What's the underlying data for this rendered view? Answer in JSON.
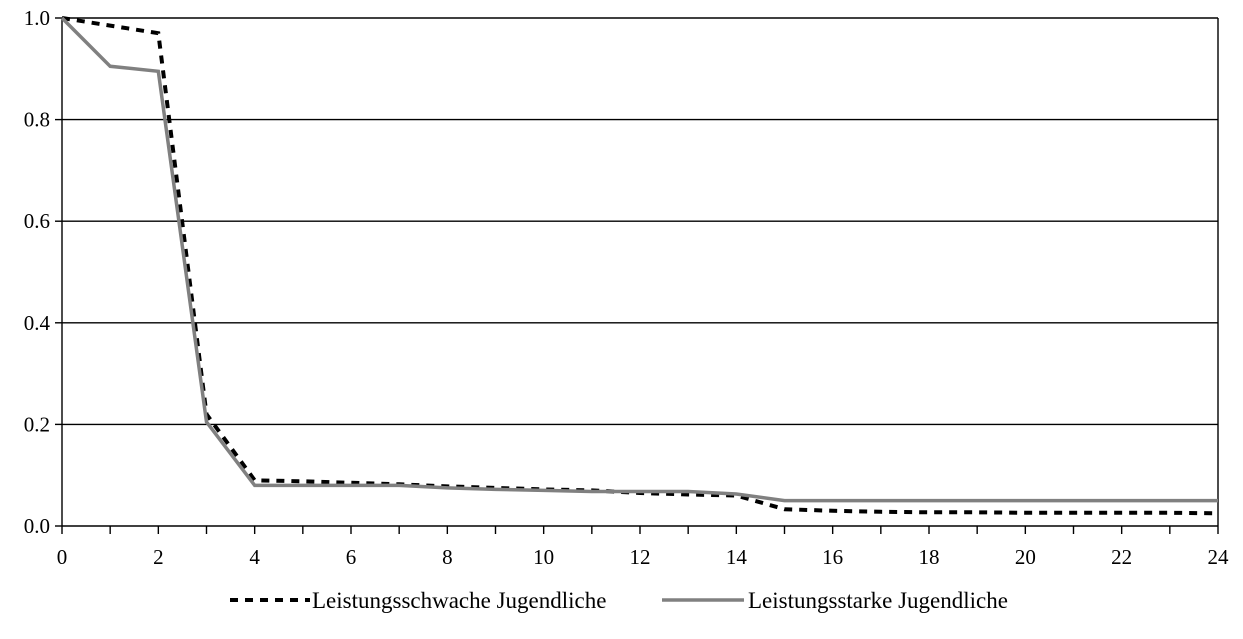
{
  "chart_data": {
    "type": "line",
    "title": "",
    "xlabel": "",
    "ylabel": "",
    "xlim": [
      0,
      24
    ],
    "ylim": [
      0,
      1.0
    ],
    "x_ticks": [
      0,
      2,
      4,
      6,
      8,
      10,
      12,
      14,
      16,
      18,
      20,
      22,
      24
    ],
    "x_tick_labels": [
      "0",
      "2",
      "4",
      "6",
      "8",
      "10",
      "12",
      "14",
      "16",
      "18",
      "20",
      "22",
      "24"
    ],
    "y_ticks": [
      0,
      0.2,
      0.4,
      0.6,
      0.8,
      1.0
    ],
    "y_tick_labels": [
      "0.0",
      "0.2",
      "0.4",
      "0.6",
      "0.8",
      "1.0"
    ],
    "grid": "horizontal",
    "legend_position": "bottom-center",
    "x": [
      0,
      1,
      2,
      3,
      4,
      5,
      6,
      7,
      8,
      9,
      10,
      11,
      12,
      13,
      14,
      15,
      16,
      17,
      18,
      19,
      20,
      21,
      22,
      23,
      24
    ],
    "series": [
      {
        "name": "Leistungsschwache Jugendliche",
        "style": "dashed",
        "color": "#000000",
        "values": [
          1.0,
          0.985,
          0.97,
          0.22,
          0.09,
          0.088,
          0.085,
          0.082,
          0.078,
          0.075,
          0.072,
          0.07,
          0.065,
          0.062,
          0.06,
          0.033,
          0.03,
          0.028,
          0.027,
          0.027,
          0.026,
          0.026,
          0.026,
          0.026,
          0.025
        ]
      },
      {
        "name": "Leistungsstarke Jugendliche",
        "style": "solid",
        "color": "#808080",
        "values": [
          1.0,
          0.905,
          0.895,
          0.205,
          0.08,
          0.08,
          0.08,
          0.08,
          0.075,
          0.072,
          0.07,
          0.068,
          0.068,
          0.068,
          0.063,
          0.05,
          0.05,
          0.05,
          0.05,
          0.05,
          0.05,
          0.05,
          0.05,
          0.05,
          0.05
        ]
      }
    ]
  }
}
